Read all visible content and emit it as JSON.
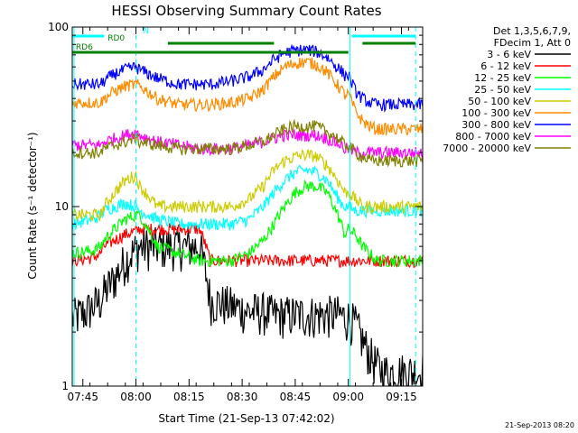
{
  "chart_data": {
    "type": "line",
    "title": "HESSI Observing Summary Count Rates",
    "xlabel": "Start Time (21-Sep-13 07:42:02)",
    "ylabel": "Count Rate (s⁻¹ detector⁻¹)",
    "x_unit": "minutes after 07:42:02",
    "xlim": [
      0,
      99
    ],
    "ylim": [
      1,
      100
    ],
    "yscale": "log",
    "grid": false,
    "legend_placement": "outside-right",
    "x_ticks": [
      {
        "label": "07:45",
        "value": 3
      },
      {
        "label": "08:00",
        "value": 18
      },
      {
        "label": "08:15",
        "value": 33
      },
      {
        "label": "08:30",
        "value": 48
      },
      {
        "label": "08:45",
        "value": 63
      },
      {
        "label": "09:00",
        "value": 78
      },
      {
        "label": "09:15",
        "value": 93
      }
    ],
    "y_ticks": [
      {
        "label": "1",
        "value": 1
      },
      {
        "label": "10",
        "value": 10
      },
      {
        "label": "100",
        "value": 100
      }
    ],
    "legend_header": [
      "Det 1,3,5,6,7,9,",
      "FDecim 1, Att 0"
    ],
    "series": [
      {
        "name": "3 - 6 keV",
        "color": "#000000",
        "x": [
          0,
          4,
          8,
          9,
          12,
          15,
          18,
          19,
          24,
          30,
          36,
          39,
          45,
          50,
          54,
          57,
          60,
          63,
          66,
          69,
          72,
          74,
          76,
          77,
          78,
          80,
          82,
          84,
          86,
          88,
          91,
          93,
          95,
          97
        ],
        "y": [
          2.4,
          2.6,
          3.0,
          3.3,
          4.0,
          5.0,
          5.8,
          6.0,
          6.0,
          6.0,
          6.0,
          3.0,
          2.8,
          2.6,
          2.6,
          2.5,
          2.5,
          2.5,
          2.5,
          2.5,
          2.5,
          2.5,
          2.5,
          2.4,
          2.4,
          2.2,
          1.8,
          1.5,
          1.3,
          1.2,
          1.2,
          1.2,
          1.2,
          1.2
        ]
      },
      {
        "name": "6 - 12 keV",
        "color": "#ff0000",
        "x": [
          0,
          6,
          8,
          9,
          12,
          15,
          18,
          19,
          24,
          30,
          36,
          39,
          45,
          50,
          54,
          57,
          60,
          63,
          66,
          69,
          72,
          74,
          76,
          77,
          78,
          80,
          82,
          84,
          86,
          88,
          91,
          93,
          95,
          97
        ],
        "y": [
          5.0,
          5.2,
          5.5,
          6.0,
          6.5,
          7.0,
          7.3,
          7.5,
          7.5,
          7.5,
          7.5,
          5.0,
          5.0,
          5.0,
          5.0,
          5.0,
          5.0,
          5.0,
          5.0,
          5.0,
          5.0,
          5.0,
          5.0,
          5.0,
          5.0,
          5.0,
          5.0,
          5.0,
          5.0,
          5.0,
          5.0,
          5.0,
          5.0,
          5.0
        ]
      },
      {
        "name": "12 - 25 keV",
        "color": "#00ff00",
        "x": [
          0,
          6,
          8,
          9,
          12,
          15,
          18,
          19,
          24,
          30,
          36,
          39,
          45,
          50,
          54,
          57,
          60,
          63,
          66,
          69,
          72,
          74,
          76,
          77,
          78,
          80,
          82,
          84,
          86,
          88,
          91,
          93,
          95,
          97
        ],
        "y": [
          5.5,
          5.7,
          6.0,
          6.5,
          7.5,
          8.5,
          9.0,
          9.0,
          6.0,
          5.5,
          5.0,
          5.0,
          5.0,
          5.5,
          6.5,
          8.0,
          10.0,
          12.0,
          13.0,
          13.0,
          12.0,
          10.0,
          8.0,
          7.0,
          7.5,
          7.0,
          6.0,
          5.5,
          5.0,
          5.0,
          5.0,
          5.0,
          5.0,
          5.0
        ]
      },
      {
        "name": "25 - 50 keV",
        "color": "#00ffff",
        "x": [
          0,
          6,
          8,
          9,
          12,
          15,
          18,
          19,
          24,
          30,
          36,
          39,
          45,
          50,
          54,
          57,
          60,
          63,
          66,
          69,
          72,
          74,
          76,
          77,
          78,
          80,
          82,
          84,
          86,
          88,
          91,
          93,
          95,
          97
        ],
        "y": [
          8.0,
          8.5,
          9.0,
          9.5,
          10.0,
          10.5,
          10.0,
          9.5,
          8.5,
          8.0,
          8.0,
          8.0,
          8.0,
          8.5,
          10.0,
          12.0,
          14.0,
          15.5,
          16.0,
          15.5,
          14.0,
          12.0,
          10.5,
          10.0,
          10.0,
          9.5,
          9.5,
          9.5,
          9.5,
          9.5,
          9.5,
          9.5,
          9.5,
          9.5
        ]
      },
      {
        "name": "50 - 100 keV",
        "color": "#cccc00",
        "x": [
          0,
          6,
          8,
          9,
          12,
          15,
          18,
          19,
          24,
          30,
          36,
          39,
          45,
          50,
          54,
          57,
          60,
          63,
          66,
          69,
          72,
          74,
          76,
          77,
          78,
          80,
          82,
          84,
          86,
          88,
          91,
          93,
          95,
          97
        ],
        "y": [
          9.0,
          9.0,
          9.0,
          10.0,
          12.0,
          14.0,
          15.0,
          13.0,
          10.0,
          10.0,
          10.0,
          10.0,
          10.0,
          11.0,
          13.0,
          16.0,
          18.0,
          19.0,
          19.5,
          19.0,
          17.0,
          15.0,
          13.0,
          12.0,
          12.0,
          11.0,
          10.0,
          10.0,
          10.0,
          10.0,
          10.0,
          10.0,
          10.0,
          10.0
        ]
      },
      {
        "name": "100 - 300 keV",
        "color": "#ff8c00",
        "x": [
          0,
          6,
          8,
          9,
          12,
          15,
          18,
          19,
          24,
          30,
          36,
          39,
          45,
          50,
          54,
          57,
          60,
          63,
          66,
          69,
          72,
          74,
          76,
          77,
          78,
          80,
          82,
          84,
          86,
          88,
          91,
          93,
          95,
          97
        ],
        "y": [
          38,
          38,
          38,
          40,
          44,
          47,
          48,
          47,
          40,
          37,
          37,
          37,
          38,
          40,
          45,
          53,
          60,
          63,
          64,
          62,
          56,
          50,
          45,
          42,
          42,
          34,
          30,
          28,
          27,
          27,
          27,
          27,
          27,
          27
        ]
      },
      {
        "name": "300 - 800 keV",
        "color": "#0000ff",
        "x": [
          0,
          6,
          8,
          9,
          12,
          15,
          18,
          19,
          24,
          30,
          36,
          39,
          45,
          50,
          54,
          57,
          60,
          63,
          66,
          69,
          72,
          74,
          76,
          77,
          78,
          80,
          82,
          84,
          86,
          88,
          91,
          93,
          95,
          97
        ],
        "y": [
          48,
          48,
          48,
          50,
          55,
          58,
          60,
          58,
          52,
          48,
          48,
          48,
          50,
          53,
          58,
          66,
          72,
          74,
          75,
          73,
          68,
          62,
          57,
          54,
          54,
          44,
          40,
          38,
          37,
          37,
          37,
          37,
          37,
          37
        ]
      },
      {
        "name": "800 - 7000 keV",
        "color": "#ff00ff",
        "x": [
          0,
          6,
          8,
          9,
          12,
          15,
          18,
          19,
          24,
          30,
          36,
          39,
          45,
          50,
          54,
          57,
          60,
          63,
          66,
          69,
          72,
          74,
          76,
          77,
          78,
          80,
          82,
          84,
          86,
          88,
          91,
          93,
          95,
          97
        ],
        "y": [
          22,
          22,
          22,
          23,
          24,
          25,
          26,
          25,
          23,
          22,
          21,
          21,
          21,
          22,
          23,
          24,
          25,
          25,
          25,
          25,
          24,
          23,
          22,
          21,
          21,
          20,
          20,
          20,
          20,
          20,
          20,
          20,
          20,
          20
        ]
      },
      {
        "name": "7000 - 20000 keV",
        "color": "#808000",
        "x": [
          0,
          6,
          8,
          9,
          12,
          15,
          18,
          19,
          24,
          30,
          36,
          39,
          45,
          50,
          54,
          57,
          60,
          63,
          66,
          69,
          72,
          74,
          76,
          77,
          78,
          80,
          82,
          84,
          86,
          88,
          91,
          93,
          95,
          97
        ],
        "y": [
          20,
          20,
          20,
          21,
          22,
          23,
          24,
          23,
          22,
          21,
          21,
          21,
          21,
          22,
          23,
          25,
          27,
          28,
          28,
          28,
          26,
          25,
          23,
          22,
          22,
          20,
          19,
          18,
          18,
          18,
          18,
          18,
          18,
          18
        ]
      }
    ],
    "state_bars": [
      {
        "name": "N",
        "color": "#00ffff",
        "label_x": 20,
        "segments": [
          [
            0,
            9
          ],
          [
            79,
            97
          ]
        ]
      },
      {
        "name": "RD0",
        "color": "#008000",
        "label_x": 10,
        "segments": [
          [
            27,
            57
          ],
          [
            82,
            97
          ]
        ]
      },
      {
        "name": "RD6",
        "color": "#008000",
        "label_x": 1,
        "segments": [
          [
            0,
            78
          ]
        ]
      }
    ],
    "vlines": [
      {
        "x": 0.5,
        "color": "#00ffff",
        "style": "solid"
      },
      {
        "x": 18,
        "color": "#00ffff",
        "style": "dashed"
      },
      {
        "x": 78.5,
        "color": "#00ffff",
        "style": "solid"
      },
      {
        "x": 97,
        "color": "#00ffff",
        "style": "dashed"
      }
    ]
  },
  "footer": {
    "stamp": "21-Sep-2013 08:20"
  }
}
